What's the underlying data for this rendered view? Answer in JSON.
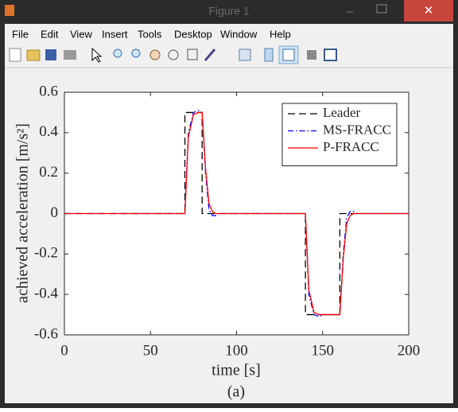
{
  "window": {
    "title": "Figure 1",
    "menu": [
      "File",
      "Edit",
      "View",
      "Insert",
      "Tools",
      "Desktop",
      "Window",
      "Help"
    ]
  },
  "chart_data": {
    "type": "line",
    "xlabel": "time [s]",
    "ylabel": "achieved acceleration [m/s²]",
    "caption": "(a)",
    "x": [
      0,
      70,
      70,
      72,
      75,
      78,
      80,
      80,
      82,
      84,
      86,
      88,
      90,
      95,
      140,
      140,
      142,
      145,
      148,
      150,
      155,
      158,
      160,
      160,
      162,
      164,
      166,
      168,
      170,
      200
    ],
    "series": [
      {
        "name": "Leader",
        "color": "#000000",
        "line_style": "dashed",
        "values": [
          0,
          0,
          0.5,
          0.5,
          0.5,
          0.5,
          0.5,
          0,
          0,
          0,
          0,
          0,
          0,
          0,
          0,
          -0.5,
          -0.5,
          -0.5,
          -0.5,
          -0.5,
          -0.5,
          -0.5,
          -0.5,
          0,
          0,
          0,
          0,
          0,
          0,
          0
        ]
      },
      {
        "name": "MS-FRACC",
        "color": "#0000ff",
        "line_style": "dashdot",
        "values": [
          0,
          0,
          0,
          0.4,
          0.5,
          0.51,
          0.5,
          0.5,
          0.2,
          0.02,
          -0.01,
          -0.01,
          0,
          0,
          0,
          0,
          -0.4,
          -0.5,
          -0.51,
          -0.5,
          -0.5,
          -0.5,
          -0.5,
          -0.5,
          -0.2,
          -0.02,
          0.01,
          0.01,
          0,
          0
        ]
      },
      {
        "name": "P-FRACC",
        "color": "#ff0000",
        "line_style": "solid",
        "values": [
          0,
          0,
          0,
          0.38,
          0.49,
          0.5,
          0.5,
          0.5,
          0.22,
          0.05,
          0.01,
          0,
          0,
          0,
          0,
          0,
          -0.38,
          -0.49,
          -0.5,
          -0.5,
          -0.5,
          -0.5,
          -0.5,
          -0.5,
          -0.22,
          -0.05,
          -0.01,
          0,
          0,
          0
        ]
      }
    ],
    "xlim": [
      0,
      200
    ],
    "xticks": [
      0,
      50,
      100,
      150,
      200
    ],
    "ylim": [
      -0.6,
      0.6
    ],
    "yticks": [
      -0.6,
      -0.4,
      -0.2,
      0,
      0.2,
      0.4,
      0.6
    ],
    "legend": "upper right",
    "grid": false
  }
}
